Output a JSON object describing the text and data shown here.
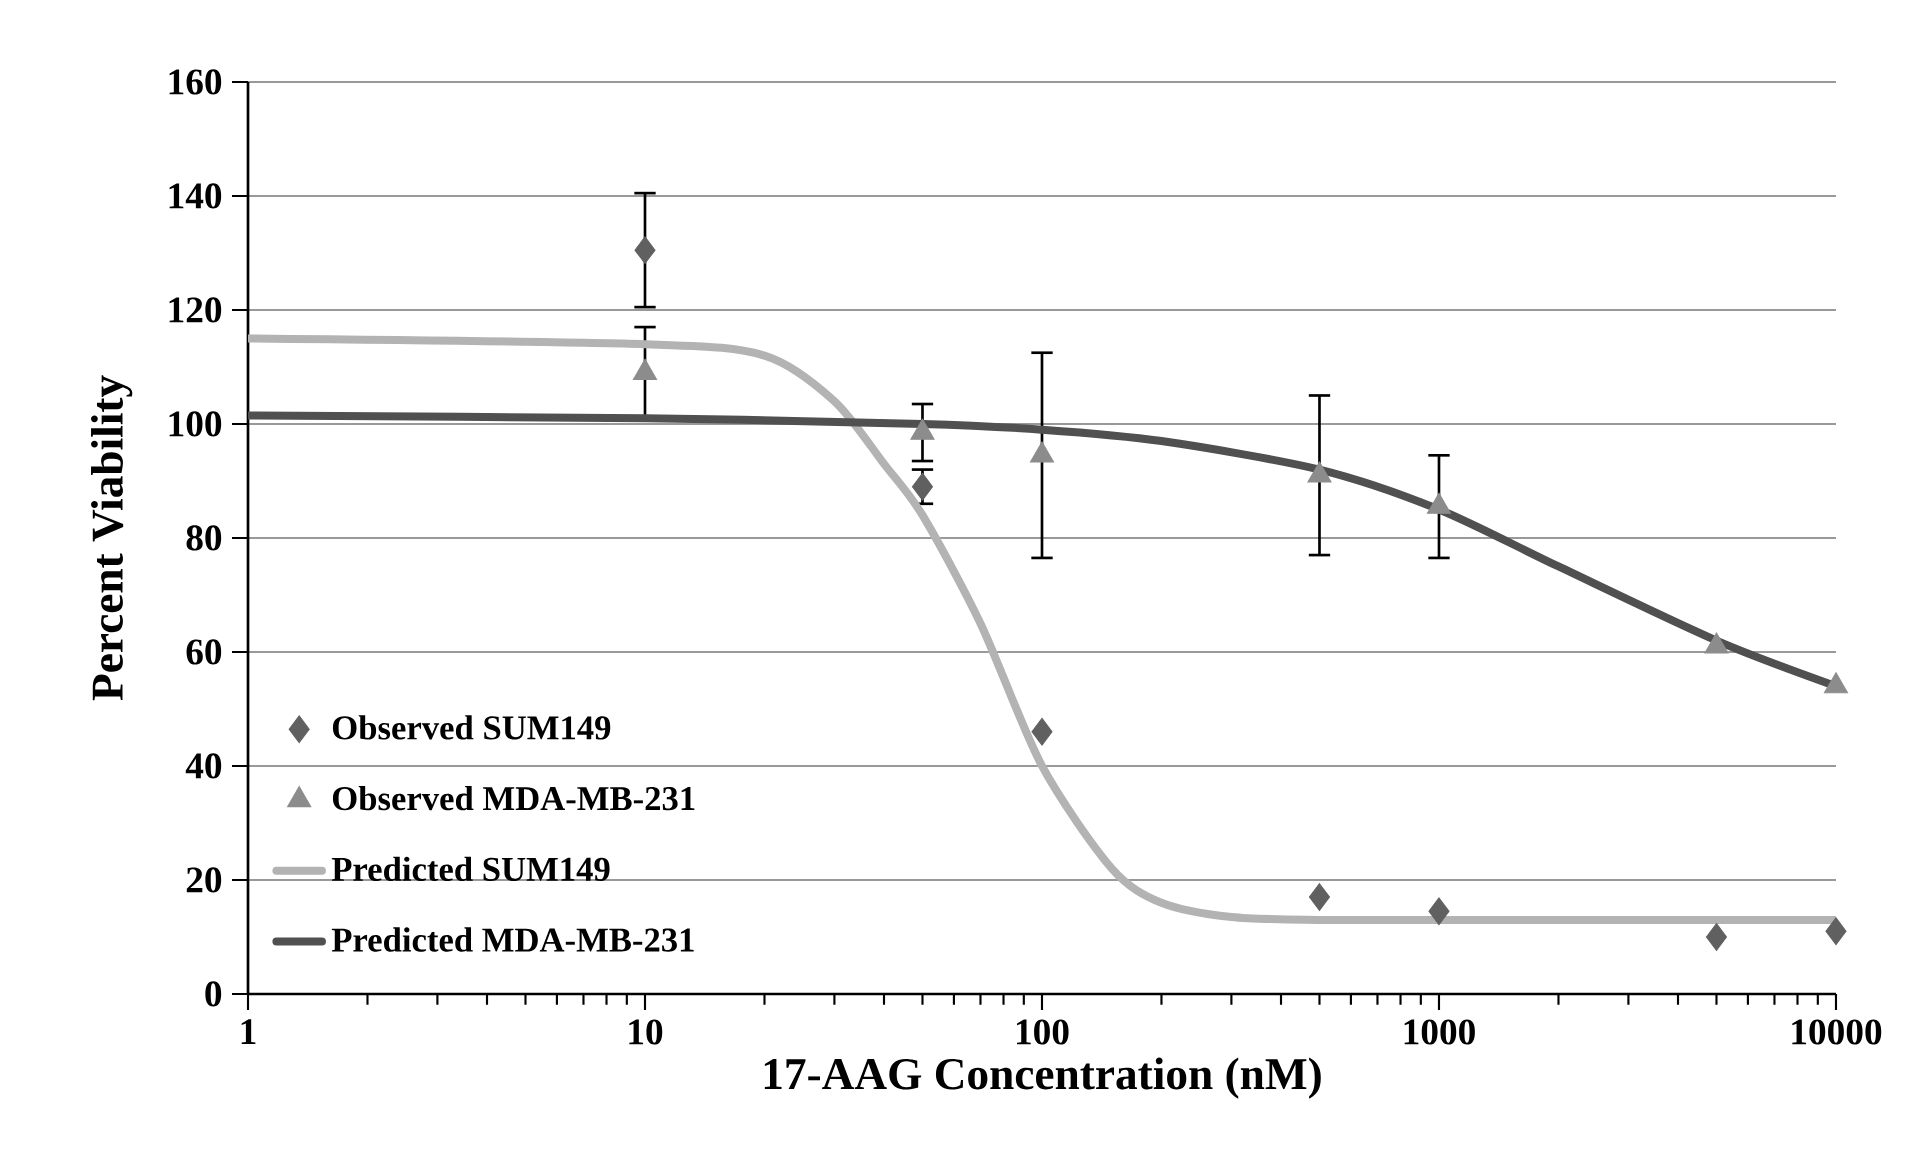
{
  "chart_data": {
    "type": "scatter",
    "xlabel": "17-AAG Concentration (nM)",
    "ylabel": "Percent Viability",
    "log": "x",
    "grid": "y",
    "legend": "bottom left",
    "xlim": [
      1,
      10000
    ],
    "xticks": [
      1,
      10,
      100,
      1000,
      10000
    ],
    "ylim": [
      0,
      160
    ],
    "yticks": [
      0,
      20,
      40,
      60,
      80,
      100,
      120,
      140,
      160
    ],
    "series": [
      {
        "name": "Observed SUM149",
        "marker": "diamond",
        "color": "#606060",
        "x": [
          10,
          50,
          100,
          500,
          1000,
          5000,
          10000
        ],
        "values": [
          130.5,
          89,
          46,
          17,
          14.5,
          10,
          11
        ],
        "errors": [
          10,
          3,
          null,
          null,
          null,
          null,
          null
        ]
      },
      {
        "name": "Observed MDA-MB-231",
        "marker": "triangle",
        "color": "#8c8c8c",
        "x": [
          10,
          50,
          100,
          500,
          1000,
          5000,
          10000
        ],
        "values": [
          109,
          98.5,
          94.5,
          91,
          85.5,
          61,
          54
        ],
        "errors": [
          8,
          5,
          18,
          14,
          9,
          null,
          null
        ]
      },
      {
        "name": "Predicted SUM149",
        "type": "line",
        "marker": "none",
        "color": "#b3b3b3",
        "x": [
          1,
          10,
          20,
          30,
          40,
          50,
          70,
          100,
          150,
          200,
          300,
          500,
          1000,
          10000
        ],
        "values": [
          115,
          114,
          112,
          104,
          93,
          84,
          65,
          40,
          22,
          16,
          13.5,
          13,
          13,
          13
        ]
      },
      {
        "name": "Predicted MDA-MB-231",
        "type": "line",
        "marker": "none",
        "color": "#505050",
        "x": [
          1,
          10,
          50,
          100,
          200,
          500,
          1000,
          2000,
          5000,
          10000
        ],
        "values": [
          101.5,
          101,
          100,
          99,
          97,
          92,
          85,
          75,
          62,
          54
        ]
      }
    ]
  }
}
